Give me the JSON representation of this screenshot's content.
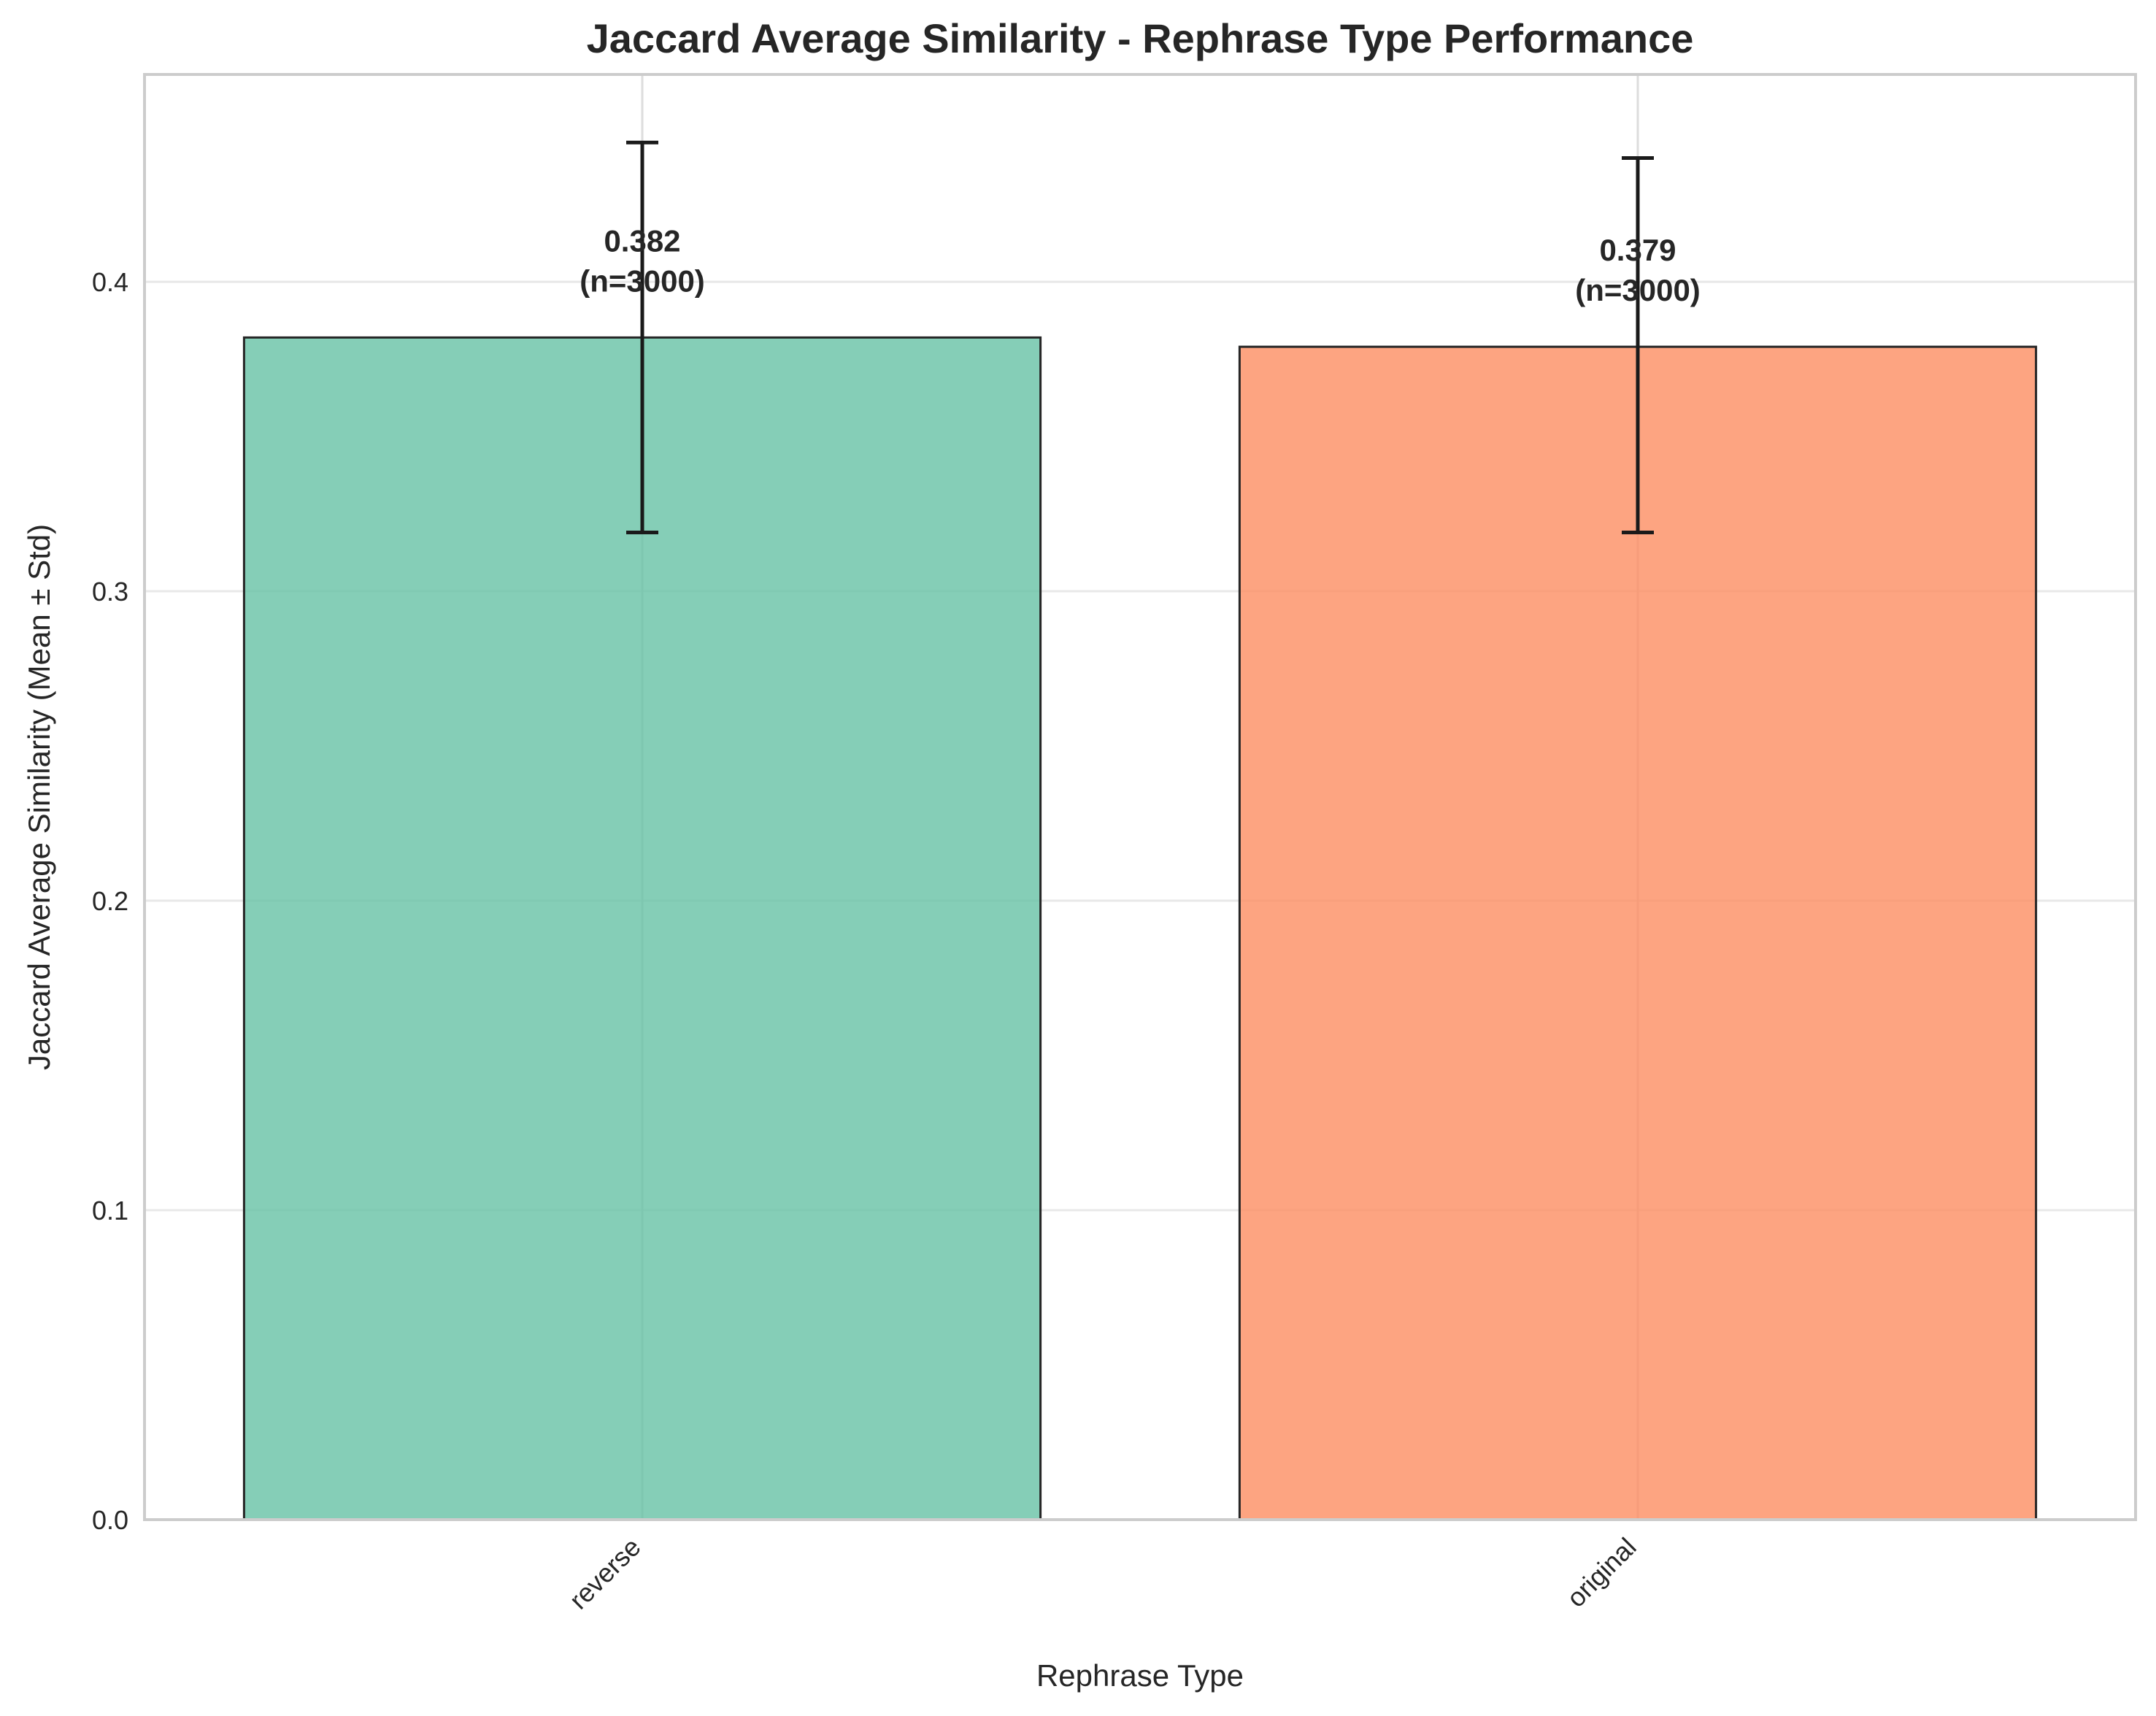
{
  "chart_data": {
    "type": "bar",
    "title": "Jaccard Average Similarity - Rephrase Type Performance",
    "xlabel": "Rephrase Type",
    "ylabel": "Jaccard Average Similarity (Mean ± Std)",
    "categories": [
      "reverse",
      "original"
    ],
    "values": [
      0.382,
      0.379
    ],
    "error_low": [
      0.319,
      0.319
    ],
    "error_high": [
      0.445,
      0.44
    ],
    "data_labels": [
      [
        "0.382",
        "(n=3000)"
      ],
      [
        "0.379",
        "(n=3000)"
      ]
    ],
    "colors": [
      "#66c2a5",
      "#fc8d62"
    ],
    "ylim": [
      0,
      0.467
    ],
    "yticks": [
      "0.0",
      "0.1",
      "0.2",
      "0.3",
      "0.4"
    ],
    "ytick_values": [
      0.0,
      0.1,
      0.2,
      0.3,
      0.4
    ],
    "grid": true,
    "legend": "none"
  }
}
